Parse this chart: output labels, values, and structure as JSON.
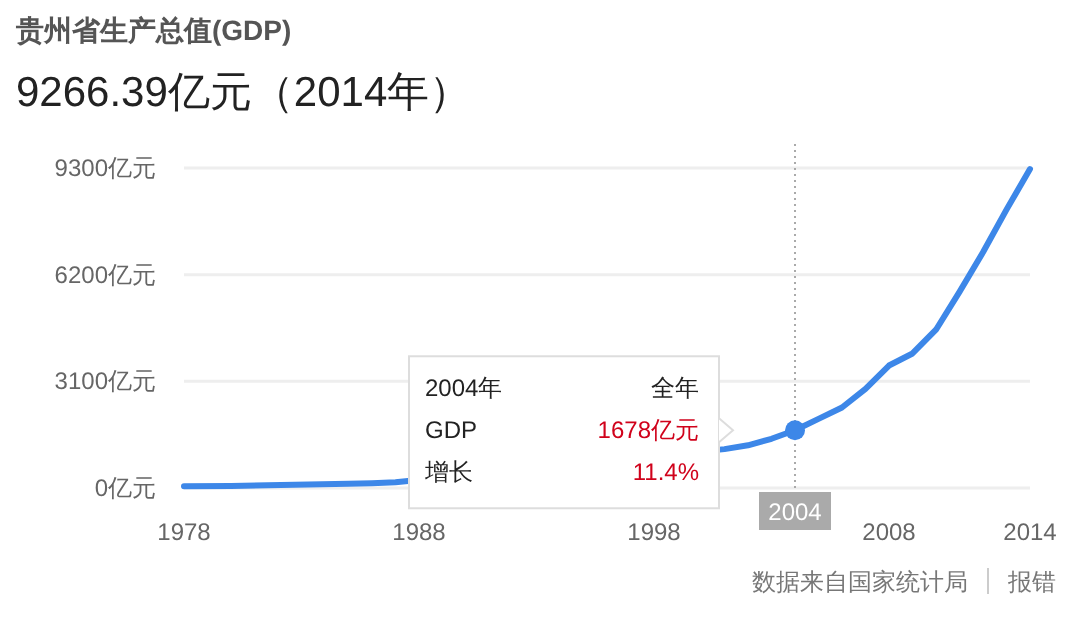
{
  "chart_data": {
    "type": "line",
    "title": "贵州省生产总值(GDP)",
    "subtitle": "9266.39亿元（2014年）",
    "series": [
      {
        "color": "#3d87e8",
        "x": [
          1978,
          1980,
          1985,
          1986,
          1987,
          2001,
          2002,
          2003,
          2004,
          2005,
          2006,
          2007,
          2008,
          2009,
          2010,
          2011,
          2012,
          2013,
          2014
        ],
        "values": [
          50,
          60,
          120,
          140,
          170,
          1130,
          1240,
          1430,
          1680,
          2010,
          2340,
          2880,
          3560,
          3910,
          4600,
          5700,
          6850,
          8090,
          9270
        ]
      },
      {
        "type": "scatter",
        "color": "#3d87e8",
        "x": [
          2004
        ],
        "values": [
          1678
        ]
      }
    ],
    "xlim": [
      1978,
      2014
    ],
    "xticks": [
      1978,
      1988,
      1998,
      2008,
      2014
    ],
    "ylim": [
      0,
      9300
    ],
    "yticks": [
      {
        "value": 0,
        "label": "0亿元"
      },
      {
        "value": 3100,
        "label": "3100亿元"
      },
      {
        "value": 6200,
        "label": "6200亿元"
      },
      {
        "value": 9300,
        "label": "9300亿元"
      }
    ],
    "grid": "y",
    "ref_lines": [
      {
        "axis": "x",
        "value": 2004,
        "label": "2004",
        "color": "#aaaaaa",
        "line_style": "dotted"
      }
    ],
    "annotations": [
      "2004年",
      "全年",
      "GDP",
      "1678亿元",
      "增长",
      "11.4%",
      "数据来自国家统计局",
      "报错"
    ]
  }
}
